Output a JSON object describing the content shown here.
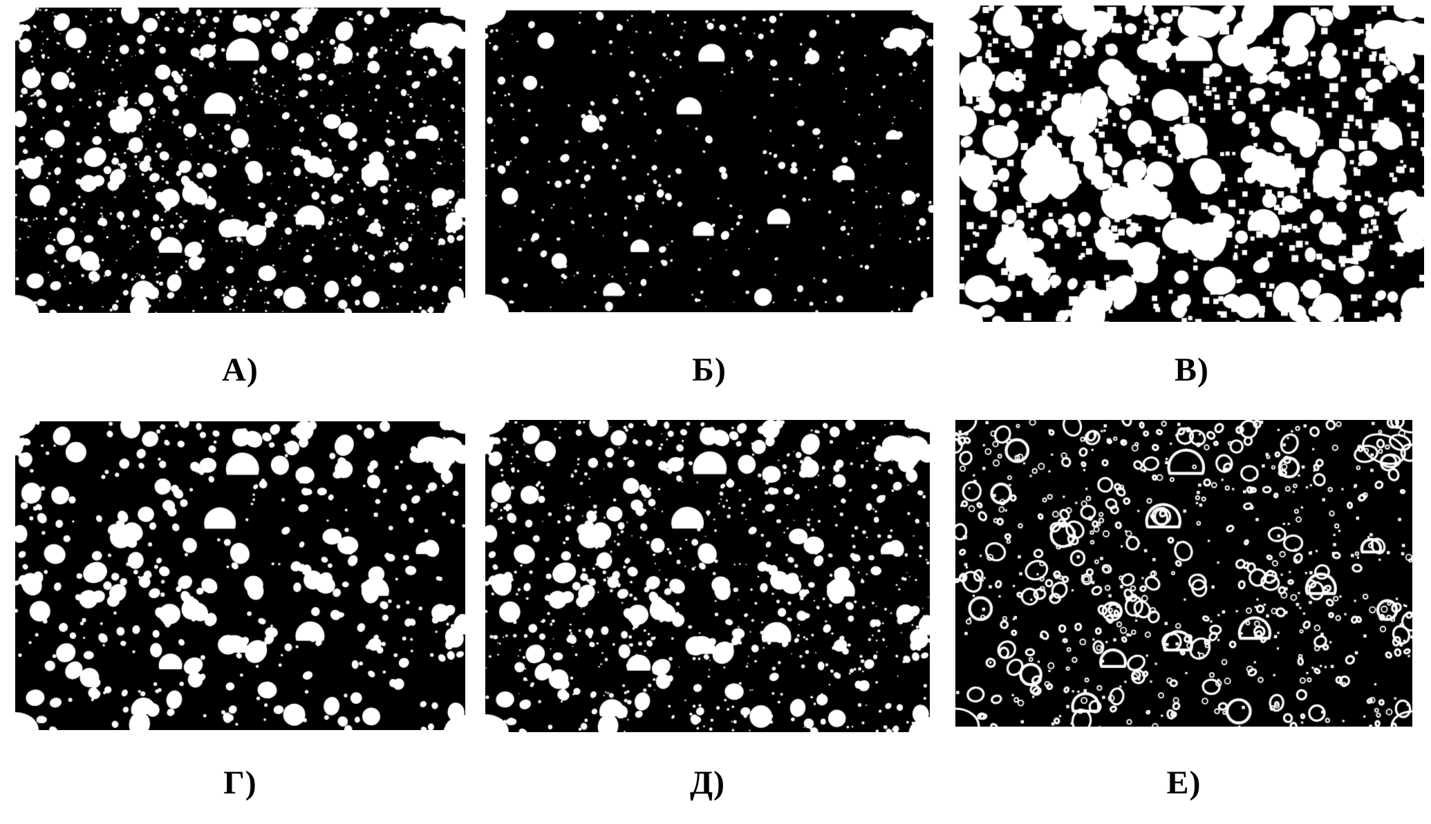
{
  "figure": {
    "seed": 20240613,
    "panel_bg": "#000000",
    "blob_color": "#ffffff",
    "label_color": "#000000",
    "panels": [
      {
        "id": "a",
        "label": "А)",
        "render_style": "original"
      },
      {
        "id": "b",
        "label": "Б)",
        "render_style": "eroded"
      },
      {
        "id": "v",
        "label": "В)",
        "render_style": "dilated"
      },
      {
        "id": "g",
        "label": "Г)",
        "render_style": "opened"
      },
      {
        "id": "d",
        "label": "Д)",
        "render_style": "closed"
      },
      {
        "id": "e",
        "label": "Е)",
        "render_style": "outline"
      }
    ]
  }
}
